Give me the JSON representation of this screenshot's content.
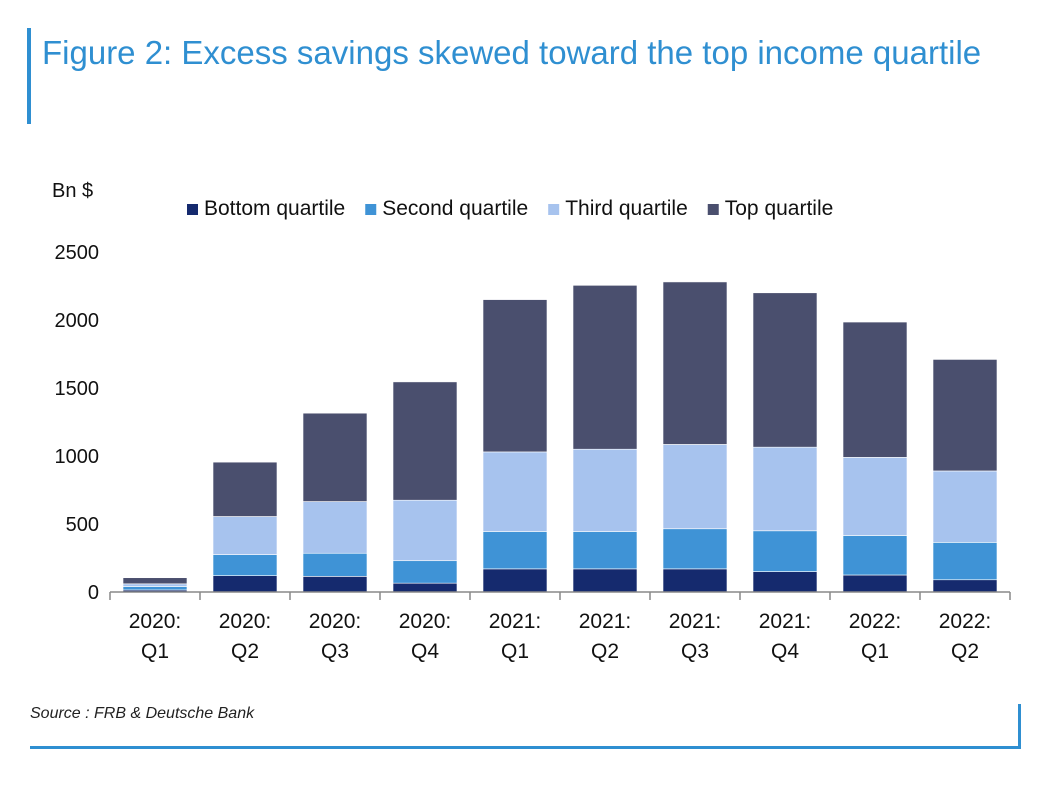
{
  "title": "Figure 2: Excess savings skewed toward the top income quartile",
  "chart_data": {
    "type": "bar",
    "stacked": true,
    "title": "Figure 2: Excess savings skewed toward the top income quartile",
    "ylabel": "Bn $",
    "xlabel": "",
    "ylim": [
      0,
      2500
    ],
    "yticks": [
      0,
      500,
      1000,
      1500,
      2000,
      2500
    ],
    "categories": [
      [
        "2020:",
        "Q1"
      ],
      [
        "2020:",
        "Q2"
      ],
      [
        "2020:",
        "Q3"
      ],
      [
        "2020:",
        "Q4"
      ],
      [
        "2021:",
        "Q1"
      ],
      [
        "2021:",
        "Q2"
      ],
      [
        "2021:",
        "Q3"
      ],
      [
        "2021:",
        "Q4"
      ],
      [
        "2022:",
        "Q1"
      ],
      [
        "2022:",
        "Q2"
      ]
    ],
    "series": [
      {
        "name": "Bottom quartile",
        "color": "#152a6e",
        "values": [
          15,
          120,
          115,
          65,
          170,
          170,
          170,
          150,
          125,
          90
        ]
      },
      {
        "name": "Second quartile",
        "color": "#3f93d6",
        "values": [
          25,
          155,
          170,
          165,
          275,
          275,
          295,
          300,
          290,
          275
        ]
      },
      {
        "name": "Third quartile",
        "color": "#a7c3ee",
        "values": [
          20,
          280,
          380,
          445,
          585,
          605,
          620,
          615,
          575,
          525
        ]
      },
      {
        "name": "Top quartile",
        "color": "#4a4f6e",
        "values": [
          45,
          400,
          650,
          870,
          1120,
          1205,
          1195,
          1135,
          995,
          820
        ]
      }
    ],
    "legend": "top",
    "grid": false,
    "source": "Source : FRB & Deutsche Bank"
  }
}
